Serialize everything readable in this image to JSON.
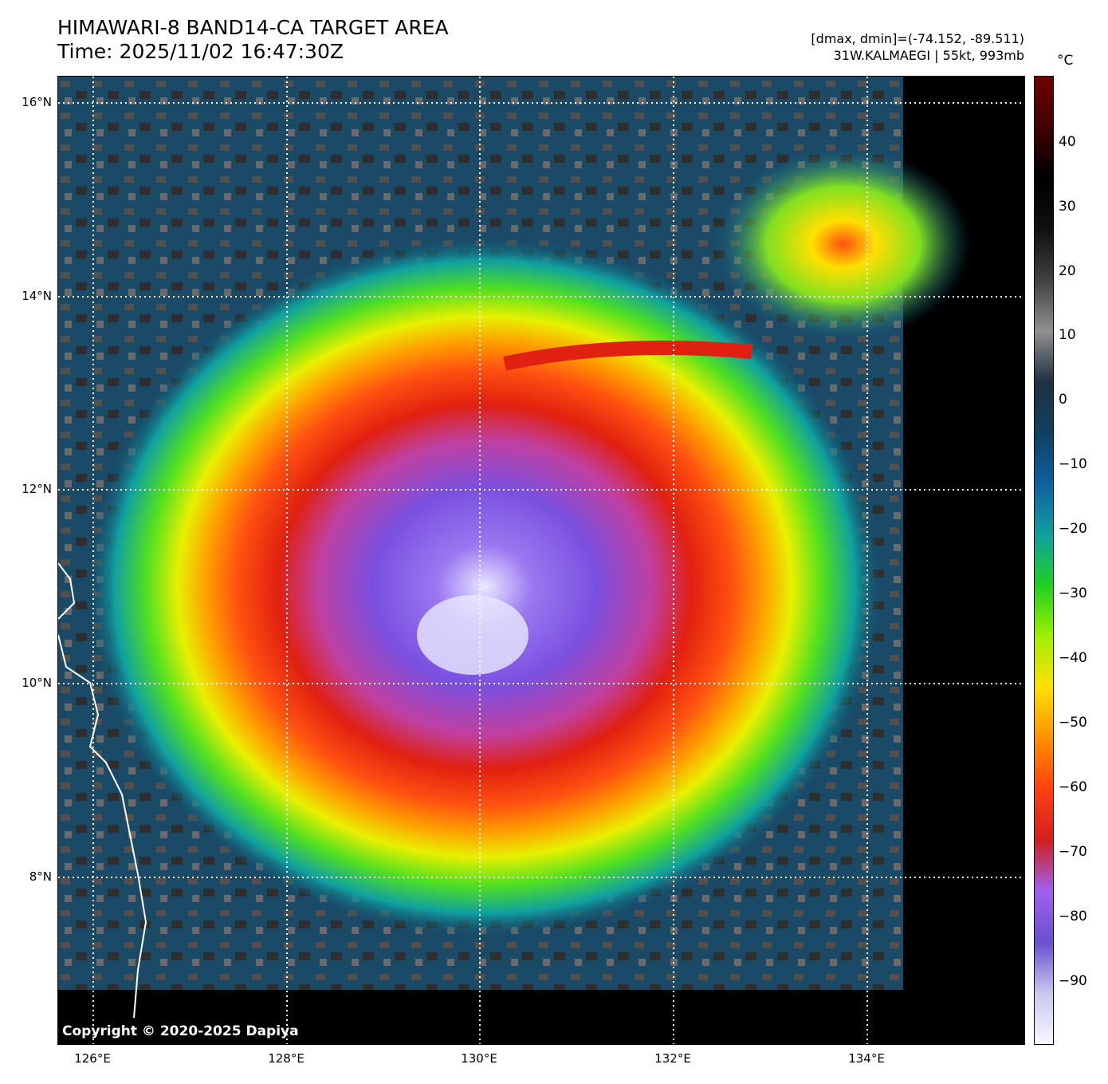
{
  "title": {
    "line1": "HIMAWARI-8 BAND14-CA TARGET AREA",
    "line2": "Time: 2025/11/02 16:47:30Z"
  },
  "meta": {
    "dmax_dmin": "[dmax, dmin]=(-74.152, -89.511)",
    "storm": "31W.KALMAEGI | 55kt, 993mb"
  },
  "copyright": "Copyright © 2020-2025 Dapiya",
  "lat_labels": [
    "16°N",
    "14°N",
    "12°N",
    "10°N",
    "8°N"
  ],
  "lon_labels": [
    "126°E",
    "128°E",
    "130°E",
    "132°E",
    "134°E"
  ],
  "colorbar": {
    "unit": "°C",
    "ticks": [
      "40",
      "30",
      "20",
      "10",
      "0",
      "−10",
      "−20",
      "−30",
      "−40",
      "−50",
      "−60",
      "−70",
      "−80",
      "−90"
    ],
    "colors": [
      "#f8f8ff",
      "#c8c8f0",
      "#6a4fd0",
      "#a060f0",
      "#d02020",
      "#ff4010",
      "#ff9000",
      "#ffe000",
      "#a0f000",
      "#20d020",
      "#10a0a0",
      "#1060a0",
      "#104060",
      "#203040",
      "#909090",
      "#404040",
      "#101010",
      "#000000",
      "#400000",
      "#700000"
    ]
  }
}
